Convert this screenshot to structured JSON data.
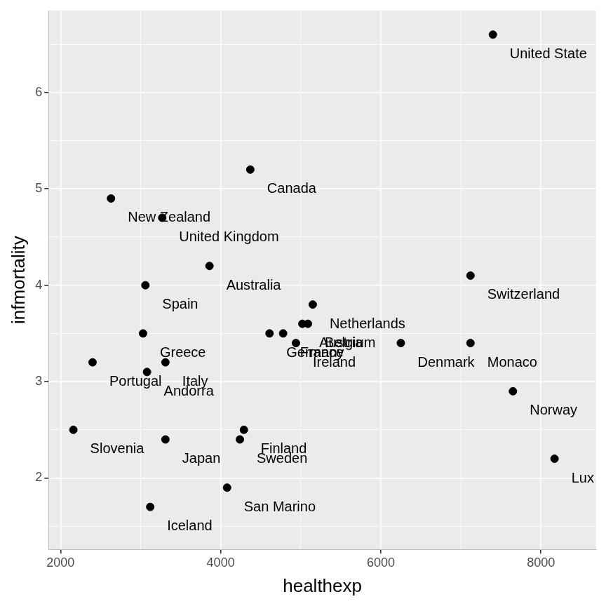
{
  "chart_data": {
    "type": "scatter",
    "x_label": "healthexp",
    "y_label": "infmortality",
    "x": [
      7400,
      4370,
      2630,
      3270,
      3860,
      3060,
      5150,
      7120,
      3030,
      3310,
      2400,
      3080,
      2160,
      3310,
      4290,
      4240,
      4080,
      3120,
      7650,
      8170,
      6250,
      7120,
      4610,
      4780,
      5020,
      5090,
      4940
    ],
    "values": [
      6.6,
      5.2,
      4.9,
      4.7,
      4.2,
      4.0,
      3.8,
      4.1,
      3.5,
      3.2,
      3.2,
      3.1,
      2.5,
      2.4,
      2.5,
      2.4,
      1.9,
      1.7,
      2.9,
      2.2,
      3.4,
      3.4,
      3.5,
      3.5,
      3.6,
      3.6,
      3.4
    ],
    "labels": [
      "United State",
      "Canada",
      "New Zealand",
      "United Kingdom",
      "Australia",
      "Spain",
      "Netherlands",
      "Switzerland",
      "Greece",
      "Italy",
      "Portugal",
      "Andorra",
      "Slovenia",
      "Japan",
      "Finland",
      "Sweden",
      "San Marino",
      "Iceland",
      "Norway",
      "Lux",
      "Denmark",
      "Monaco",
      "Germany",
      "France",
      "Austria",
      "Belgium",
      "Ireland"
    ],
    "color": "#000000",
    "xlim": [
      1850,
      8690
    ],
    "ylim": [
      1.26,
      6.85
    ],
    "xticks": [
      2000,
      4000,
      6000,
      8000
    ],
    "yticks": [
      2,
      3,
      4,
      5,
      6
    ],
    "grid": true
  }
}
